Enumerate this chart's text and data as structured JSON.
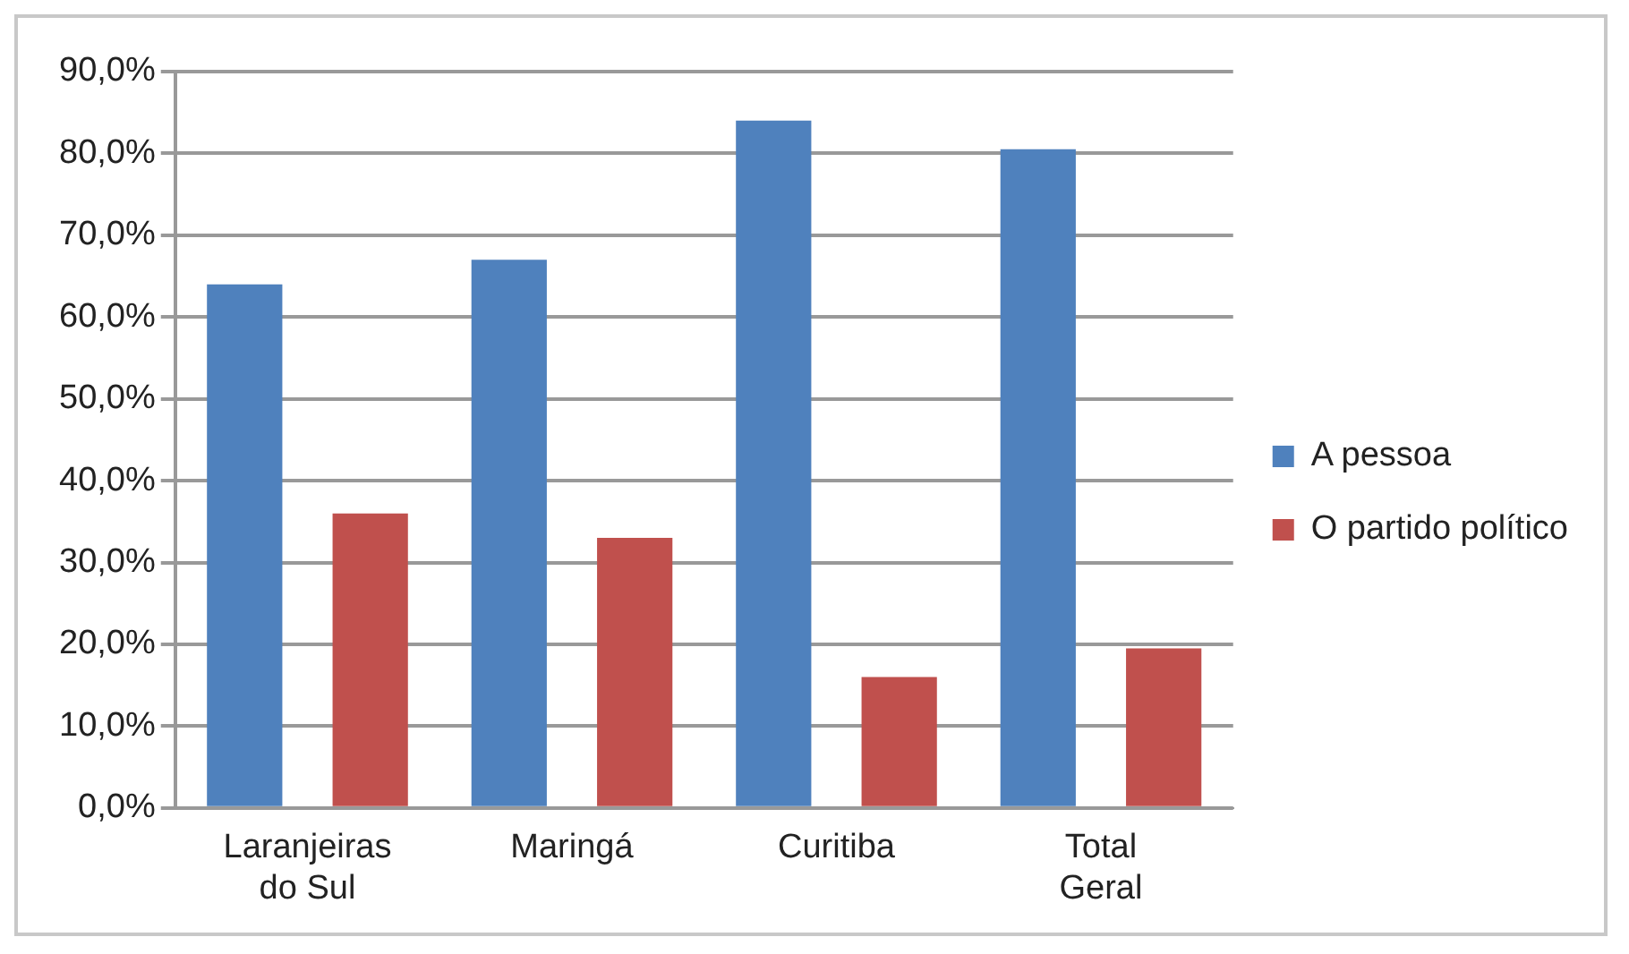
{
  "chart_data": {
    "type": "bar",
    "categories": [
      "Laranjeiras do Sul",
      "Maringá",
      "Curitiba",
      "Total Geral"
    ],
    "series": [
      {
        "name": "A pessoa",
        "color": "#4f81bd",
        "values": [
          64,
          67,
          84,
          80.5
        ]
      },
      {
        "name": "O partido político",
        "color": "#c0504d",
        "values": [
          36,
          33,
          16,
          19.5
        ]
      }
    ],
    "ylim": [
      0,
      90
    ],
    "yticks": [
      {
        "value": 0,
        "label": "0,0%"
      },
      {
        "value": 10,
        "label": "10,0%"
      },
      {
        "value": 20,
        "label": "20,0%"
      },
      {
        "value": 30,
        "label": "30,0%"
      },
      {
        "value": 40,
        "label": "40,0%"
      },
      {
        "value": 50,
        "label": "50,0%"
      },
      {
        "value": 60,
        "label": "60,0%"
      },
      {
        "value": 70,
        "label": "70,0%"
      },
      {
        "value": 80,
        "label": "80,0%"
      },
      {
        "value": 90,
        "label": "90,0%"
      }
    ],
    "grid": "y",
    "legend": "right"
  }
}
